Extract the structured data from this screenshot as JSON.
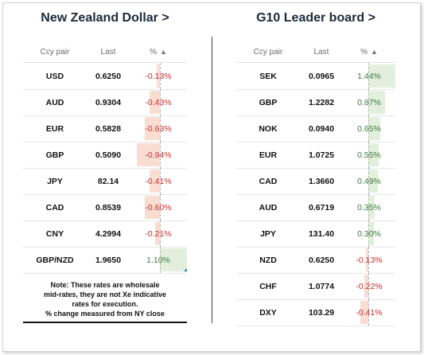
{
  "left": {
    "title": "New Zealand Dollar >",
    "headers": {
      "pair": "Ccy pair",
      "last": "Last",
      "pct": "%",
      "sort_icon": "triangle-up-icon"
    },
    "rows": [
      {
        "pair": "USD",
        "last": "0.6250",
        "pct": "-0.13%",
        "change": -0.13
      },
      {
        "pair": "AUD",
        "last": "0.9304",
        "pct": "-0.43%",
        "change": -0.43
      },
      {
        "pair": "EUR",
        "last": "0.5828",
        "pct": "-0.63%",
        "change": -0.63
      },
      {
        "pair": "GBP",
        "last": "0.5090",
        "pct": "-0.94%",
        "change": -0.94
      },
      {
        "pair": "JPY",
        "last": "82.14",
        "pct": "-0.41%",
        "change": -0.41
      },
      {
        "pair": "CAD",
        "last": "0.8539",
        "pct": "-0.60%",
        "change": -0.6
      },
      {
        "pair": "CNY",
        "last": "4.2994",
        "pct": "-0.21%",
        "change": -0.21
      },
      {
        "pair": "GBP/NZD",
        "last": "1.9650",
        "pct": "1.10%",
        "change": 1.1
      }
    ],
    "note": [
      "Note: These rates are wholesale",
      "mid-rates, they are not Xe indicative",
      "rates for execution.",
      "% change measured from NY close"
    ]
  },
  "right": {
    "title": "G10 Leader board >",
    "headers": {
      "pair": "Ccy pair",
      "last": "Last",
      "pct": "%",
      "sort_icon": "triangle-up-icon"
    },
    "rows": [
      {
        "pair": "SEK",
        "last": "0.0965",
        "pct": "1.44%",
        "change": 1.44
      },
      {
        "pair": "GBP",
        "last": "1.2282",
        "pct": "0.87%",
        "change": 0.87
      },
      {
        "pair": "NOK",
        "last": "0.0940",
        "pct": "0.65%",
        "change": 0.65
      },
      {
        "pair": "EUR",
        "last": "1.0725",
        "pct": "0.55%",
        "change": 0.55
      },
      {
        "pair": "CAD",
        "last": "1.3660",
        "pct": "0.49%",
        "change": 0.49
      },
      {
        "pair": "AUD",
        "last": "0.6719",
        "pct": "0.35%",
        "change": 0.35
      },
      {
        "pair": "JPY",
        "last": "131.40",
        "pct": "0.30%",
        "change": 0.3
      },
      {
        "pair": "NZD",
        "last": "0.6250",
        "pct": "-0.13%",
        "change": -0.13
      },
      {
        "pair": "CHF",
        "last": "1.0774",
        "pct": "-0.22%",
        "change": -0.22
      },
      {
        "pair": "DXY",
        "last": "103.29",
        "pct": "-0.41%",
        "change": -0.41
      }
    ]
  },
  "colors": {
    "negative_text": "#cc2b2b",
    "positive_text": "#3d7a3d",
    "negative_bar": "#f9ddd3",
    "positive_bar": "#e2efdc"
  }
}
